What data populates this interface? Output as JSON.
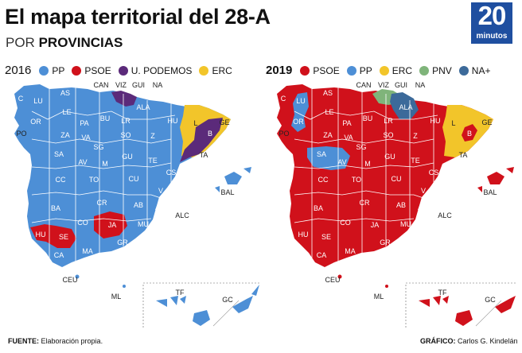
{
  "header": {
    "title": "El mapa territorial del 28-A",
    "subtitle_prefix": "POR",
    "subtitle_bold": "PROVINCIAS",
    "logo_number": "20",
    "logo_word": "minutos"
  },
  "colors": {
    "PP": "#4d8fd6",
    "PSOE": "#d0111b",
    "PODEMOS": "#5b2a7a",
    "ERC": "#f2c52a",
    "PNV": "#7fb47a",
    "NA": "#3c6a9a",
    "logo": "#1f4fa0"
  },
  "map2016": {
    "year": "2016",
    "legend": [
      "PP",
      "PSOE",
      "U. PODEMOS",
      "ERC"
    ],
    "labels": {
      "C": "C",
      "LU": "LU",
      "AS": "AS",
      "OR": "OR",
      "LE": "LE",
      "PO": "PO",
      "CAN": "CAN",
      "VIZ": "VIZ",
      "GUI": "GUI",
      "NA": "NA",
      "ALA": "ALA",
      "BU": "BU",
      "PA": "PA",
      "LR": "LR",
      "HU": "HU",
      "L": "L",
      "GE": "GE",
      "B": "B",
      "TA": "TA",
      "ZA": "ZA",
      "VA": "VA",
      "SO": "SO",
      "Z": "Z",
      "SA": "SA",
      "SG": "SG",
      "AV": "AV",
      "M": "M",
      "GU": "GU",
      "TE": "TE",
      "CS": "CS",
      "CC": "CC",
      "TO": "TO",
      "CU": "CU",
      "V": "V",
      "BA": "BA",
      "CR": "CR",
      "AB": "AB",
      "A": "A",
      "ALC": "ALC",
      "HU2": "HU",
      "SE": "SE",
      "CO": "CO",
      "JA": "JA",
      "MU": "MU",
      "GR": "GR",
      "AL": "AL",
      "CA": "CA",
      "MA": "MA",
      "CEU": "CEU",
      "ML": "ML",
      "BAL": "BAL",
      "TF": "TF",
      "GC": "GC"
    }
  },
  "map2019": {
    "year": "2019",
    "legend": [
      "PSOE",
      "PP",
      "ERC",
      "PNV",
      "NA+"
    ],
    "labels": {
      "C": "C",
      "LU": "LU",
      "AS": "AS",
      "OR": "OR",
      "LE": "LE",
      "PO": "PO",
      "CAN": "CAN",
      "VIZ": "VIZ",
      "GUI": "GUI",
      "NA": "NA",
      "ALA": "ALA",
      "BU": "BU",
      "PA": "PA",
      "LR": "LR",
      "HU": "HU",
      "L": "L",
      "GE": "GE",
      "B": "B",
      "TA": "TA",
      "ZA": "ZA",
      "VA": "VA",
      "SO": "SO",
      "Z": "Z",
      "SA": "SA",
      "SG": "SG",
      "AV": "AV",
      "M": "M",
      "GU": "GU",
      "TE": "TE",
      "CS": "CS",
      "CC": "CC",
      "TO": "TO",
      "CU": "CU",
      "V": "V",
      "BA": "BA",
      "CR": "CR",
      "AB": "AB",
      "A": "A",
      "ALC": "ALC",
      "HU2": "HU",
      "SE": "SE",
      "CO": "CO",
      "JA": "JA",
      "MU": "MU",
      "GR": "GR",
      "AL": "AL",
      "CA": "CA",
      "MA": "MA",
      "CEU": "CEU",
      "ML": "ML",
      "BAL": "BAL",
      "TF": "TF",
      "GC": "GC"
    }
  },
  "footer": {
    "source_label": "FUENTE:",
    "source_text": "Elaboración propia.",
    "credit_label": "GRÁFICO:",
    "credit_text": "Carlos G. Kindelán"
  }
}
